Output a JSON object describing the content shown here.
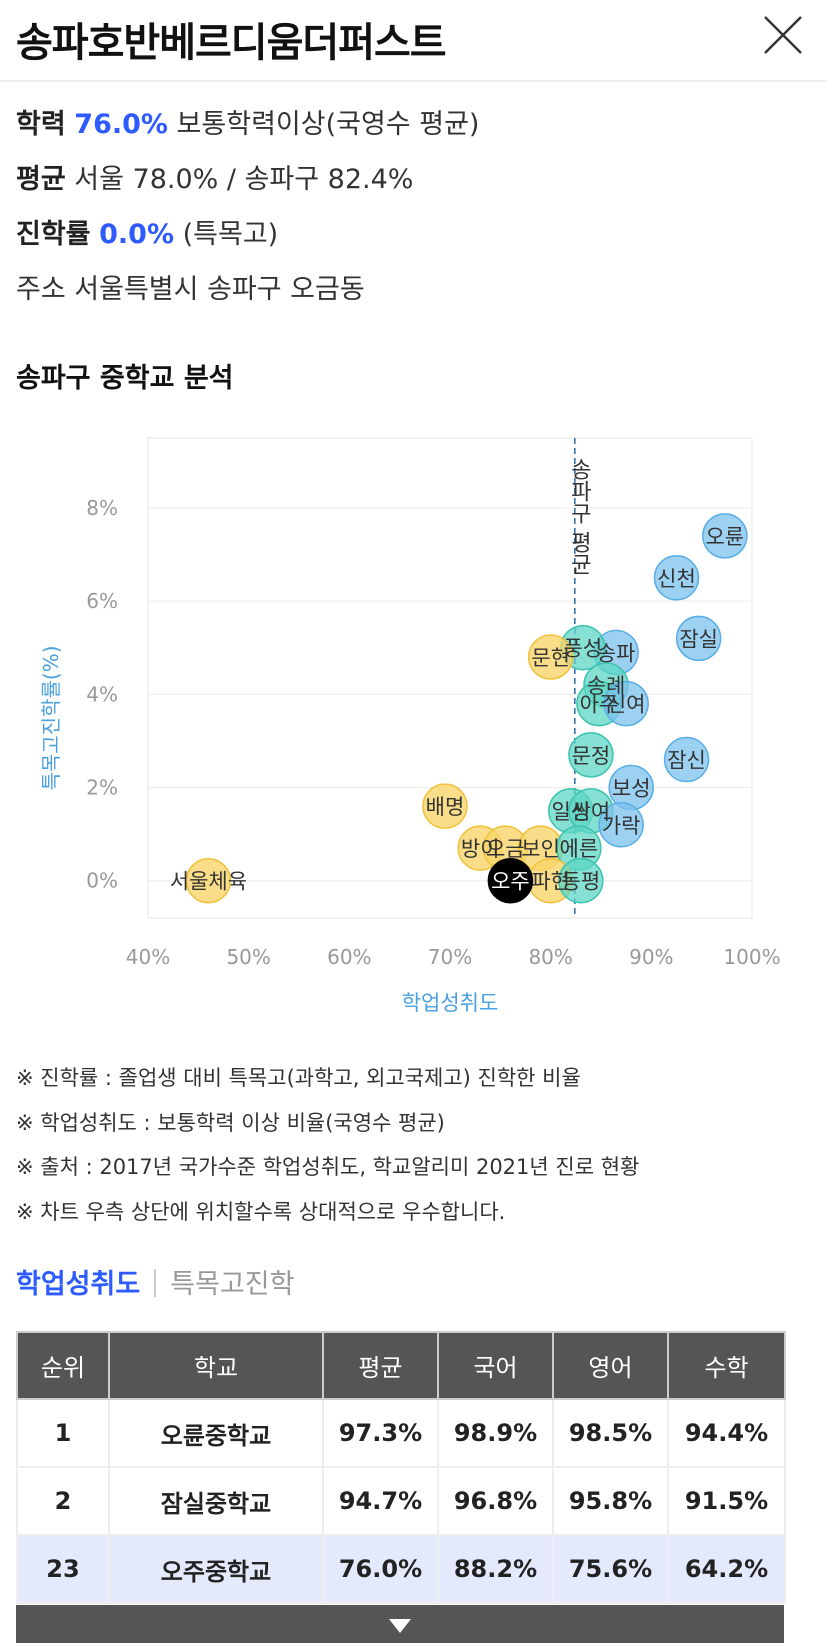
{
  "header": {
    "title": "송파호반베르디움더퍼스트"
  },
  "info": {
    "academic_label": "학력",
    "academic_value": "76.0%",
    "academic_desc": "보통학력이상(국영수 평균)",
    "avg_label": "평균",
    "avg_value": "서울 78.0% / 송파구 82.4%",
    "advance_label": "진학률",
    "advance_value": "0.0%",
    "advance_desc": "(특목고)",
    "address_label": "주소",
    "address_value": "서울특별시 송파구 오금동"
  },
  "section_title": "송파구 중학교 분석",
  "chart_data": {
    "type": "scatter",
    "xlabel": "학업성취도",
    "ylabel": "특목고진학률(%)",
    "xlim": [
      40,
      100
    ],
    "ylim": [
      -0.8,
      9.5
    ],
    "x_ticks": [
      "40%",
      "50%",
      "60%",
      "70%",
      "80%",
      "90%",
      "100%"
    ],
    "y_ticks": [
      "0%",
      "2%",
      "4%",
      "6%",
      "8%"
    ],
    "reference_line": {
      "x": 82.4,
      "label": "송파구 평균"
    },
    "colors": {
      "blue": "#7cc2ee",
      "teal": "#5ed6c4",
      "yellow": "#f7d56a",
      "black": "#000000"
    },
    "points": [
      {
        "label": "오륜",
        "x": 97.3,
        "y": 7.4,
        "color": "blue"
      },
      {
        "label": "신천",
        "x": 92.5,
        "y": 6.5,
        "color": "blue"
      },
      {
        "label": "잠실",
        "x": 94.7,
        "y": 5.2,
        "color": "blue"
      },
      {
        "label": "송파",
        "x": 86.5,
        "y": 4.9,
        "color": "blue"
      },
      {
        "label": "풍성",
        "x": 83.2,
        "y": 5.0,
        "color": "teal"
      },
      {
        "label": "문현",
        "x": 80.0,
        "y": 4.8,
        "color": "yellow"
      },
      {
        "label": "송례",
        "x": 85.5,
        "y": 4.2,
        "color": "teal"
      },
      {
        "label": "아주",
        "x": 84.8,
        "y": 3.8,
        "color": "teal"
      },
      {
        "label": "신여",
        "x": 87.5,
        "y": 3.8,
        "color": "blue"
      },
      {
        "label": "잠신",
        "x": 93.5,
        "y": 2.6,
        "color": "blue"
      },
      {
        "label": "문정",
        "x": 84.0,
        "y": 2.7,
        "color": "teal"
      },
      {
        "label": "보성",
        "x": 88.0,
        "y": 2.0,
        "color": "blue"
      },
      {
        "label": "배명",
        "x": 69.5,
        "y": 1.6,
        "color": "yellow"
      },
      {
        "label": "일신",
        "x": 82.0,
        "y": 1.5,
        "color": "teal"
      },
      {
        "label": "쌍여",
        "x": 84.0,
        "y": 1.5,
        "color": "teal"
      },
      {
        "label": "가락",
        "x": 87.0,
        "y": 1.2,
        "color": "blue"
      },
      {
        "label": "방이",
        "x": 73.0,
        "y": 0.7,
        "color": "yellow"
      },
      {
        "label": "오금",
        "x": 75.5,
        "y": 0.7,
        "color": "yellow"
      },
      {
        "label": "보인",
        "x": 79.0,
        "y": 0.7,
        "color": "yellow"
      },
      {
        "label": "에른",
        "x": 82.8,
        "y": 0.7,
        "color": "teal"
      },
      {
        "label": "서울체육",
        "x": 46.0,
        "y": 0.0,
        "color": "yellow"
      },
      {
        "label": "파현",
        "x": 80.0,
        "y": 0.0,
        "color": "yellow"
      },
      {
        "label": "동평",
        "x": 83.0,
        "y": 0.0,
        "color": "teal"
      },
      {
        "label": "오주",
        "x": 76.0,
        "y": 0.0,
        "color": "black"
      }
    ]
  },
  "notes": [
    "※ 진학률 : 졸업생 대비 특목고(과학고, 외고국제고) 진학한 비율",
    "※ 학업성취도 : 보통학력 이상 비율(국영수 평균)",
    "※ 출처 : 2017년 국가수준 학업성취도, 학교알리미 2021년 진로 현황",
    "※ 차트 우측 상단에 위치할수록 상대적으로 우수합니다."
  ],
  "tabs": {
    "active": "학업성취도",
    "inactive": "특목고진학"
  },
  "table": {
    "headers": [
      "순위",
      "학교",
      "평균",
      "국어",
      "영어",
      "수학"
    ],
    "rows": [
      [
        "1",
        "오륜중학교",
        "97.3%",
        "98.9%",
        "98.5%",
        "94.4%"
      ],
      [
        "2",
        "잠실중학교",
        "94.7%",
        "96.8%",
        "95.8%",
        "91.5%"
      ],
      [
        "23",
        "오주중학교",
        "76.0%",
        "88.2%",
        "75.6%",
        "64.2%"
      ]
    ]
  }
}
